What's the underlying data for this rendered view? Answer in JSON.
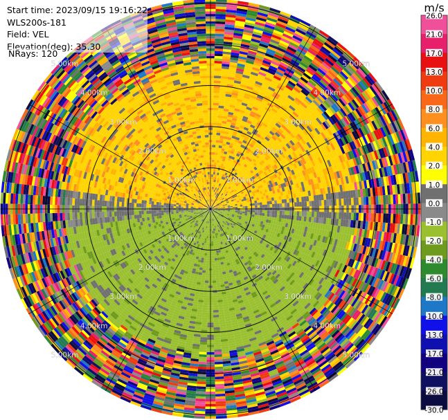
{
  "info": {
    "start_time": "Start time: 2023/09/15 19:16:22",
    "instrument": "WLS200s-181",
    "field": "Field: VEL",
    "elevation": "Elevation(deg): 35.30",
    "nrays": "NRays: 120"
  },
  "chart_data": {
    "type": "heatmap",
    "projection": "polar-ppi",
    "field": "VEL",
    "units": "m/s",
    "n_rays": 120,
    "range_rings_km": [
      1.0,
      2.0,
      3.0,
      4.0,
      5.0
    ],
    "ring_label_text": [
      "1.00km",
      "2.00km",
      "3.00km",
      "4.00km",
      "5.00km"
    ],
    "spokes_deg": [
      0,
      30,
      60,
      90,
      120,
      150,
      180,
      210,
      240,
      270,
      300,
      330
    ],
    "colorbar": {
      "title": "m/s",
      "levels": [
        "26.0",
        "21.0",
        "17.0",
        "13.0",
        "10.0",
        "8.0",
        "6.0",
        "4.0",
        "2.0",
        "1.0",
        "0.0",
        "-1.0",
        "-2.0",
        "-4.0",
        "-6.0",
        "-8.0",
        "-10.0",
        "-13.0",
        "-17.0",
        "-21.0",
        "-26.0",
        "-30.0"
      ],
      "colors": [
        "#f0509a",
        "#e8206c",
        "#e81010",
        "#f03a10",
        "#f86818",
        "#ff9020",
        "#ffb400",
        "#ffd400",
        "#ffff00",
        "#707070",
        "#8a8a8a",
        "#9ac030",
        "#6e9a1e",
        "#2e8a2e",
        "#227a50",
        "#1e78c8",
        "#1010e8",
        "#1010b0",
        "#100080",
        "#101060",
        "#0c0c40"
      ]
    },
    "description_zones": {
      "north_near": "positive 2 to 6 m/s (yellow)",
      "south_near": "negative -1 to -2 m/s (light green)",
      "center_east_west": "near zero (grey)",
      "outer": "noise, all values"
    }
  }
}
